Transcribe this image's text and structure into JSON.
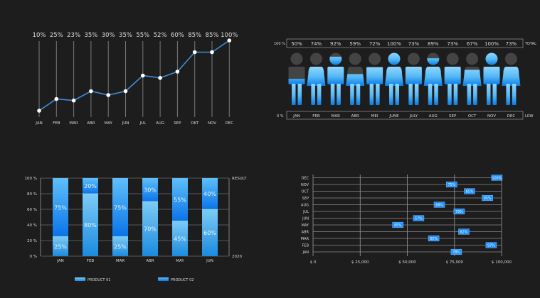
{
  "colors": {
    "background": "#1d1d1d",
    "line": "#3b8fd9",
    "accent": "#1e90ff",
    "light_blue": "#7fd0ff",
    "gray_fill": "#444444",
    "grid": "#8a8a8a"
  },
  "chart_data": [
    {
      "type": "line",
      "categories": [
        "JAN",
        "FEB",
        "MAR",
        "ABR",
        "MAY",
        "JUN",
        "JUL",
        "AUG",
        "SEP",
        "OKT",
        "NOV",
        "DEC"
      ],
      "values": [
        10,
        25,
        23,
        35,
        30,
        35,
        55,
        52,
        60,
        85,
        85,
        100
      ],
      "data_labels": [
        "10%",
        "25%",
        "23%",
        "35%",
        "30%",
        "35%",
        "55%",
        "52%",
        "60%",
        "85%",
        "85%",
        "100%"
      ],
      "ylim": [
        10,
        100
      ],
      "grid": "vertical"
    },
    {
      "type": "bar",
      "subtype": "pictogram",
      "categories": [
        "JAN",
        "FEB",
        "MAR",
        "ABR",
        "MEI",
        "JUNE",
        "JULY",
        "AUG",
        "SEP",
        "OCT",
        "NOV",
        "DEC"
      ],
      "figures": [
        "male",
        "female",
        "male",
        "female",
        "male",
        "female",
        "male",
        "female",
        "male",
        "female",
        "male",
        "female"
      ],
      "values": [
        50,
        74,
        92,
        59,
        72,
        100,
        73,
        89,
        73,
        67,
        100,
        73
      ],
      "data_labels": [
        "50%",
        "74%",
        "92%",
        "59%",
        "72%",
        "100%",
        "73%",
        "89%",
        "73%",
        "67%",
        "100%",
        "73%"
      ],
      "top_left_label": "100 %",
      "top_right_label": "TOTAL",
      "bottom_left_label": "0 %",
      "bottom_right_label": "LOW",
      "ylim": [
        0,
        100
      ]
    },
    {
      "type": "bar",
      "subtype": "stacked-100",
      "categories": [
        "JAN",
        "FEB",
        "MAR",
        "ABR",
        "MAY",
        "JUN"
      ],
      "series": [
        {
          "name": "PRODUCT 01",
          "values": [
            25,
            80,
            25,
            70,
            45,
            60
          ],
          "labels": [
            "25%",
            "80%",
            "25%",
            "70%",
            "45%",
            "60%"
          ]
        },
        {
          "name": "PRODUCT 02",
          "values": [
            75,
            20,
            75,
            30,
            55,
            40
          ],
          "labels": [
            "75%",
            "20%",
            "75%",
            "30%",
            "55%",
            "40%"
          ]
        }
      ],
      "yticks": [
        "0 %",
        "20 %",
        "40 %",
        "60 %",
        "80 %",
        "100 %"
      ],
      "right_top_label": "RESULT",
      "right_bottom_label": "2020",
      "ylim": [
        0,
        100
      ],
      "grid": "horizontal",
      "legend": "bottom"
    },
    {
      "type": "scatter",
      "categories": [
        "JAN",
        "FEB",
        "MAR",
        "ABR",
        "MAY",
        "JUN",
        "JUL",
        "AUG",
        "SEP",
        "OCT",
        "NOV",
        "DEC"
      ],
      "values": [
        76000,
        94500,
        64000,
        80000,
        45000,
        56000,
        77500,
        67000,
        92500,
        83000,
        73500,
        97500
      ],
      "data_labels": [
        "78%",
        "97%",
        "65%",
        "82%",
        "45%",
        "57%",
        "79%",
        "68%",
        "95%",
        "85%",
        "75%",
        "100%"
      ],
      "xticks": [
        "$ 0",
        "$ 25,000",
        "$ 50,000",
        "$ 75,000",
        "$ 100,000"
      ],
      "xlim": [
        0,
        100000
      ],
      "grid": "both"
    }
  ]
}
